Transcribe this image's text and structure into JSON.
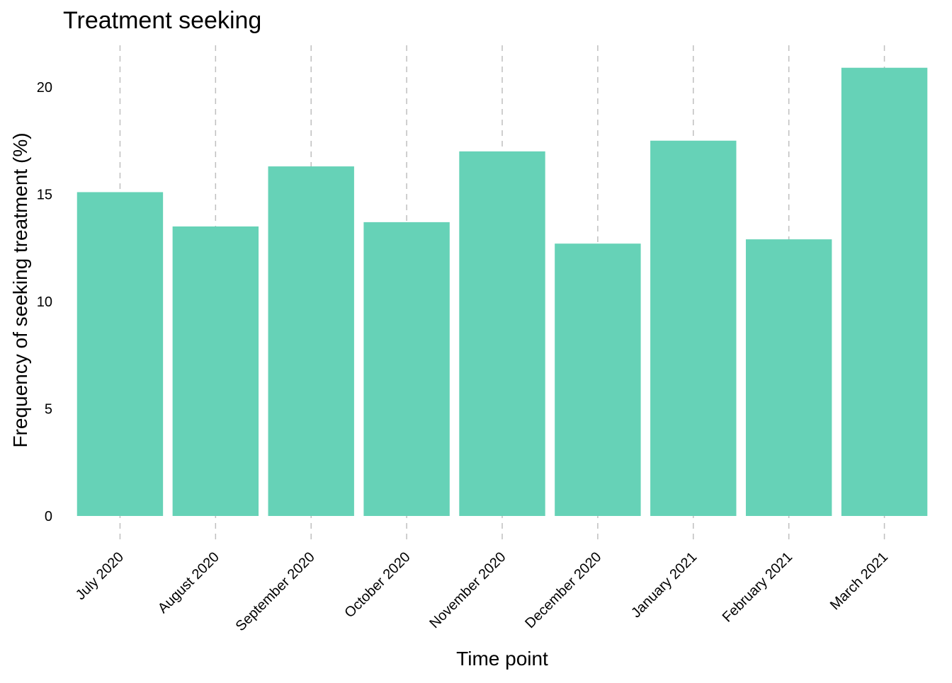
{
  "chart_data": {
    "type": "bar",
    "title": "Treatment seeking",
    "xlabel": "Time point",
    "ylabel": "Frequency of seeking treatment (%)",
    "categories": [
      "July 2020",
      "August 2020",
      "September 2020",
      "October 2020",
      "November 2020",
      "December 2020",
      "January 2021",
      "February 2021",
      "March 2021"
    ],
    "values": [
      15.1,
      13.5,
      16.3,
      13.7,
      17.0,
      12.7,
      17.5,
      12.9,
      20.9
    ],
    "ylim": [
      0,
      22
    ],
    "yticks": [
      0,
      5,
      10,
      15,
      20
    ],
    "grid": "vertical dashed",
    "bar_color": "#66d2b7",
    "grid_color": "#bfbfbf"
  }
}
